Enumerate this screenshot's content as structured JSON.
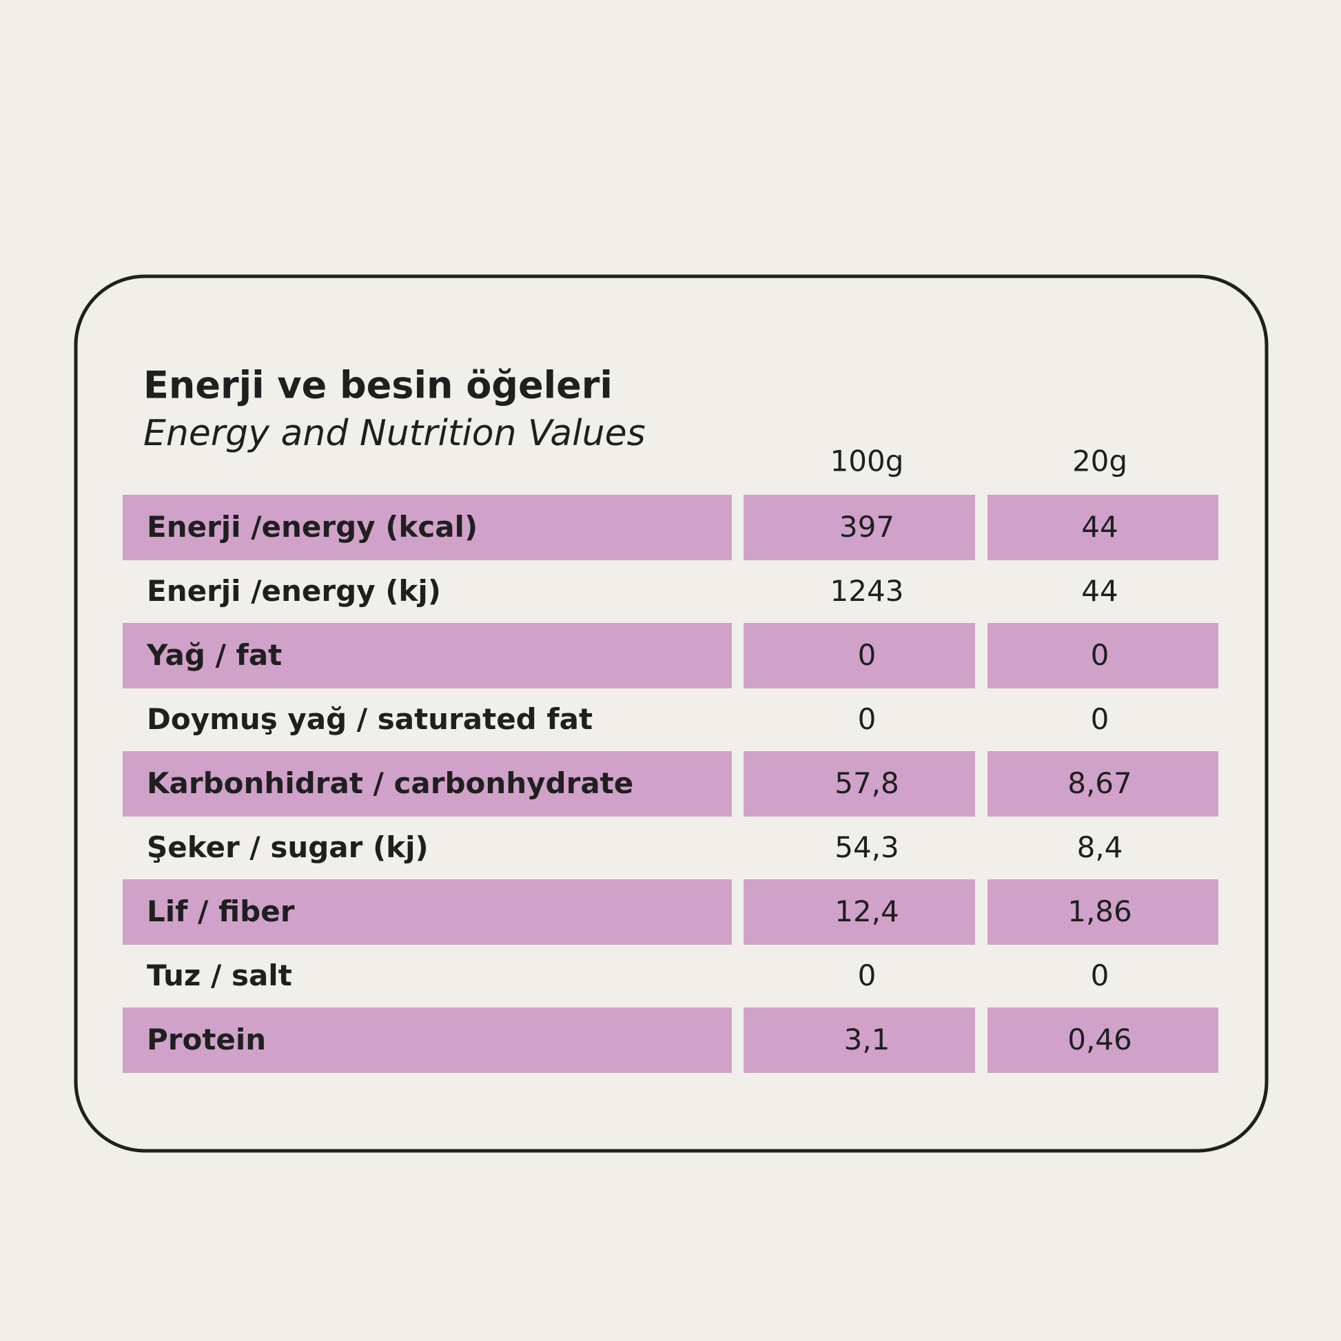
{
  "header": {
    "title": "Enerji ve besin öğeleri",
    "subtitle": "Energy and Nutrition Values"
  },
  "table": {
    "columns": [
      "100g",
      "20g"
    ],
    "rows": [
      [
        "Enerji /energy (kcal)",
        "397",
        "44"
      ],
      [
        "Enerji /energy (kj)",
        "1243",
        "44"
      ],
      [
        "Yağ / fat",
        "0",
        "0"
      ],
      [
        "Doymuş yağ / saturated fat",
        "0",
        "0"
      ],
      [
        "Karbonhidrat / carbonhydrate",
        "57,8",
        "8,67"
      ],
      [
        "Şeker / sugar (kj)",
        "54,3",
        "8,4"
      ],
      [
        "Lif / fiber",
        "12,4",
        "1,86"
      ],
      [
        "Tuz / salt",
        "0",
        "0"
      ],
      [
        "Protein",
        "3,1",
        "0,46"
      ]
    ]
  }
}
